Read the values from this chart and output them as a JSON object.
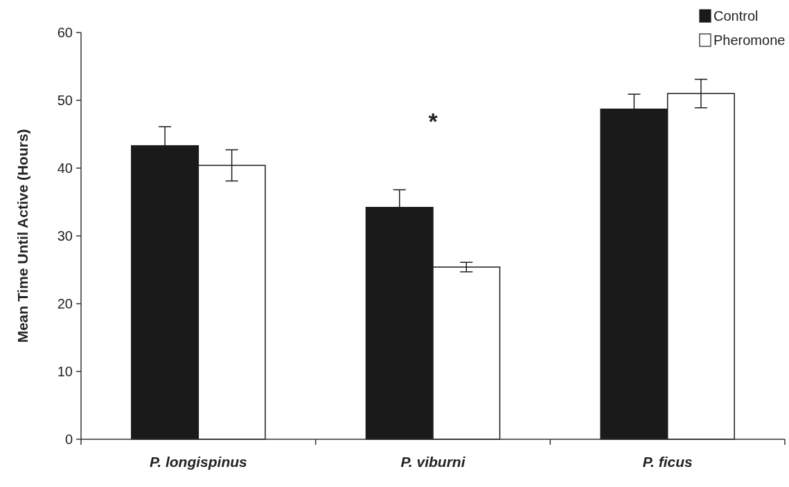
{
  "chart_data": {
    "type": "bar",
    "ylabel": "Mean Time Until Active (Hours)",
    "categories": [
      "P. longispinus",
      "P. viburni",
      "P. ficus"
    ],
    "series": [
      {
        "name": "Control",
        "color": "#1a1a1a",
        "values": [
          43.3,
          34.2,
          48.7
        ],
        "errors": [
          2.8,
          2.6,
          2.2
        ]
      },
      {
        "name": "Pheromone",
        "color": "#ffffff",
        "values": [
          40.4,
          25.4,
          51.0
        ],
        "errors": [
          2.3,
          0.7,
          2.1
        ]
      }
    ],
    "ylim": [
      0,
      60
    ],
    "yticks": [
      0,
      10,
      20,
      30,
      40,
      50,
      60
    ],
    "grid": false,
    "legend": "top right",
    "annotations": [
      "*"
    ]
  }
}
